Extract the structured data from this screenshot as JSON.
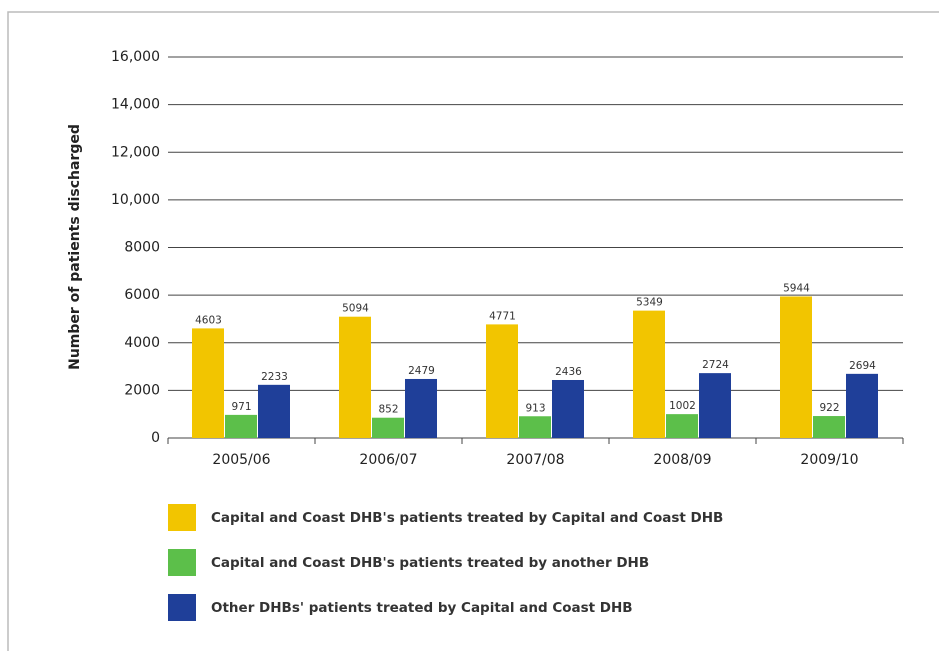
{
  "chart_data": {
    "type": "bar",
    "y_label": "Number of patients discharged",
    "categories": [
      "2005/06",
      "2006/07",
      "2007/08",
      "2008/09",
      "2009/10"
    ],
    "series": [
      {
        "name": "Capital and Coast DHB's patients treated by Capital and Coast DHB",
        "color": "#f2c500",
        "values": [
          4603,
          5094,
          4771,
          5349,
          5944
        ]
      },
      {
        "name": "Capital and Coast DHB's patients treated by another DHB",
        "color": "#5cbf4a",
        "values": [
          971,
          852,
          913,
          1002,
          922
        ]
      },
      {
        "name": "Other DHBs' patients treated by Capital and Coast DHB",
        "color": "#1f3f99",
        "values": [
          2233,
          2479,
          2436,
          2724,
          2694
        ]
      }
    ],
    "ylim": [
      0,
      16000
    ],
    "yticks": [
      0,
      2000,
      4000,
      6000,
      8000,
      {
        "value": 10000,
        "label": "10,000"
      },
      {
        "value": 12000,
        "label": "12,000"
      },
      {
        "value": 14000,
        "label": "14,000"
      },
      {
        "value": 16000,
        "label": "16,000"
      }
    ],
    "grid": true,
    "legend": "bottom"
  }
}
